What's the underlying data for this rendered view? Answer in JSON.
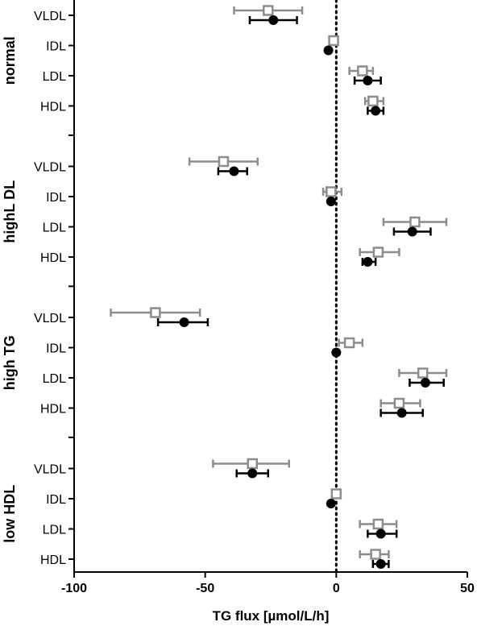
{
  "chart_data": {
    "type": "forest",
    "xlabel": "TG flux [µmol/L/h]",
    "xlim": [
      -100,
      50
    ],
    "xticks": [
      -100,
      -50,
      0,
      50
    ],
    "xtick_labels": [
      "-100",
      "-50",
      "0",
      "50"
    ],
    "reference_line": {
      "x": 0,
      "style": "dotted"
    },
    "colors": {
      "open_square": "#8c8c8c",
      "filled_circle": "#000000"
    },
    "groups": [
      {
        "name": "normal",
        "rows": [
          {
            "label": "VLDL",
            "open_square": {
              "value": -26,
              "lo": -39,
              "hi": -13
            },
            "filled_circle": {
              "value": -24,
              "lo": -33,
              "hi": -15
            }
          },
          {
            "label": "IDL",
            "open_square": {
              "value": -1,
              "lo": -2,
              "hi": 0
            },
            "filled_circle": {
              "value": -3,
              "lo": -3,
              "hi": -3
            }
          },
          {
            "label": "LDL",
            "open_square": {
              "value": 10,
              "lo": 5,
              "hi": 14
            },
            "filled_circle": {
              "value": 12,
              "lo": 7,
              "hi": 17
            }
          },
          {
            "label": "HDL",
            "open_square": {
              "value": 14,
              "lo": 11,
              "hi": 18
            },
            "filled_circle": {
              "value": 15,
              "lo": 12,
              "hi": 18
            }
          }
        ]
      },
      {
        "name": "highL DL",
        "rows": [
          {
            "label": "VLDL",
            "open_square": {
              "value": -43,
              "lo": -56,
              "hi": -30
            },
            "filled_circle": {
              "value": -39,
              "lo": -45,
              "hi": -34
            }
          },
          {
            "label": "IDL",
            "open_square": {
              "value": -2,
              "lo": -5,
              "hi": 2
            },
            "filled_circle": {
              "value": -2,
              "lo": -2,
              "hi": -2
            }
          },
          {
            "label": "LDL",
            "open_square": {
              "value": 30,
              "lo": 18,
              "hi": 42
            },
            "filled_circle": {
              "value": 29,
              "lo": 22,
              "hi": 36
            }
          },
          {
            "label": "HDL",
            "open_square": {
              "value": 16,
              "lo": 9,
              "hi": 24
            },
            "filled_circle": {
              "value": 12,
              "lo": 10,
              "hi": 15
            }
          }
        ]
      },
      {
        "name": "high TG",
        "rows": [
          {
            "label": "VLDL",
            "open_square": {
              "value": -69,
              "lo": -86,
              "hi": -52
            },
            "filled_circle": {
              "value": -58,
              "lo": -68,
              "hi": -49
            }
          },
          {
            "label": "IDL",
            "open_square": {
              "value": 5,
              "lo": 1,
              "hi": 10
            },
            "filled_circle": {
              "value": 0,
              "lo": 0,
              "hi": 0
            }
          },
          {
            "label": "LDL",
            "open_square": {
              "value": 33,
              "lo": 24,
              "hi": 42
            },
            "filled_circle": {
              "value": 34,
              "lo": 28,
              "hi": 41
            }
          },
          {
            "label": "HDL",
            "open_square": {
              "value": 24,
              "lo": 17,
              "hi": 32
            },
            "filled_circle": {
              "value": 25,
              "lo": 17,
              "hi": 33
            }
          }
        ]
      },
      {
        "name": "low HDL",
        "rows": [
          {
            "label": "VLDL",
            "open_square": {
              "value": -32,
              "lo": -47,
              "hi": -18
            },
            "filled_circle": {
              "value": -32,
              "lo": -38,
              "hi": -26
            }
          },
          {
            "label": "IDL",
            "open_square": {
              "value": 0,
              "lo": -1,
              "hi": 1
            },
            "filled_circle": {
              "value": -2,
              "lo": -2,
              "hi": -2
            }
          },
          {
            "label": "LDL",
            "open_square": {
              "value": 16,
              "lo": 9,
              "hi": 23
            },
            "filled_circle": {
              "value": 17,
              "lo": 12,
              "hi": 23
            }
          },
          {
            "label": "HDL",
            "open_square": {
              "value": 15,
              "lo": 9,
              "hi": 20
            },
            "filled_circle": {
              "value": 17,
              "lo": 14,
              "hi": 20
            }
          }
        ]
      }
    ]
  }
}
